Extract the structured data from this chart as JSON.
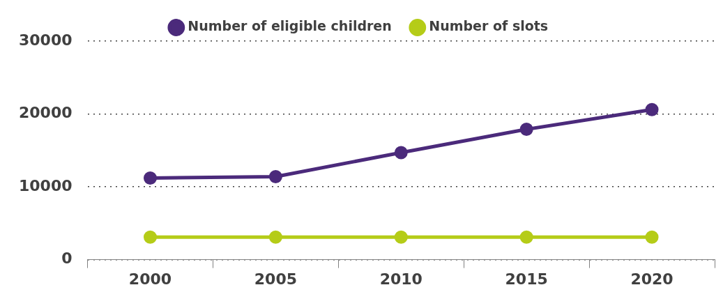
{
  "chart_data": {
    "type": "line",
    "categories": [
      "2000",
      "2005",
      "2010",
      "2015",
      "2020"
    ],
    "series": [
      {
        "name": "Number of eligible children",
        "color": "#4b2a7b",
        "values": [
          11200,
          11400,
          14700,
          17900,
          20600
        ]
      },
      {
        "name": "Number of slots",
        "color": "#b5cc18",
        "values": [
          3100,
          3100,
          3100,
          3100,
          3100
        ]
      }
    ],
    "ylim": [
      0,
      30000
    ],
    "yticks": [
      0,
      10000,
      20000,
      30000
    ],
    "grid": "y",
    "legend": "top",
    "marker": "circle",
    "line_style": "solid"
  }
}
